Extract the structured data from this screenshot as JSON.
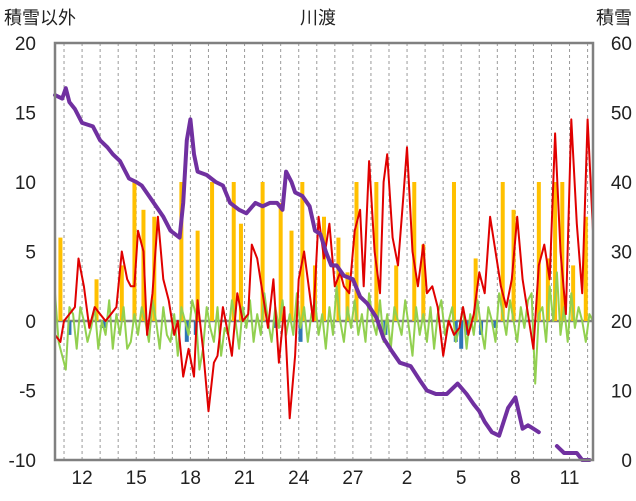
{
  "chart_data": {
    "type": "line",
    "title": "川渡",
    "left_axis_label": "積雪以外",
    "right_axis_label": "積雪",
    "left_ylim": [
      -10,
      20
    ],
    "left_ticks": [
      "20",
      "15",
      "10",
      "5",
      "0",
      "-5",
      "-10"
    ],
    "right_ylim": [
      0,
      60
    ],
    "right_ticks": [
      "60",
      "50",
      "40",
      "30",
      "20",
      "10",
      "0"
    ],
    "x_ticks": [
      "12",
      "15",
      "18",
      "21",
      "24",
      "27",
      "2",
      "5",
      "8",
      "11"
    ],
    "x_range_days": [
      10.5,
      40.3
    ],
    "grid": "vertical dashed daily gridlines",
    "colors": {
      "snow_depth": "#7030a0",
      "temperature": "#e00000",
      "temperature_alt": "#92d050",
      "precipitation": "#ffc000",
      "snowfall": "#2e75b6",
      "axis_zero": "#808080"
    },
    "snow_depth": {
      "axis": "right",
      "x": [
        10.5,
        10.9,
        11.1,
        11.3,
        11.6,
        12.0,
        12.6,
        13.0,
        13.4,
        13.7,
        14.1,
        14.6,
        15.0,
        15.3,
        15.7,
        16.1,
        16.5,
        16.9,
        17.4,
        17.6,
        17.8,
        18.0,
        18.2,
        18.4,
        18.9,
        19.4,
        19.8,
        20.2,
        20.7,
        21.1,
        21.6,
        22.0,
        22.4,
        22.8,
        23.1,
        23.3,
        23.6,
        23.8,
        24.2,
        24.6,
        24.9,
        25.2,
        25.5,
        25.8,
        26.1,
        26.5,
        27.0,
        27.4,
        27.8,
        28.3,
        28.7,
        29.2,
        29.6,
        30.2,
        30.7,
        31.1,
        31.6,
        32.2,
        32.8,
        33.3,
        33.7,
        34.0,
        34.3,
        34.7,
        35.1,
        35.6,
        36.0,
        36.4,
        36.7,
        37.0,
        37.3
      ],
      "y": [
        52.5,
        52.0,
        53.5,
        51.5,
        50.5,
        48.5,
        48.0,
        46.0,
        45.0,
        44.0,
        43.0,
        40.5,
        40.0,
        39.5,
        38.0,
        36.5,
        35.0,
        33.0,
        32.0,
        37.0,
        46.0,
        49.0,
        44.0,
        41.5,
        41.0,
        40.0,
        39.5,
        37.0,
        36.0,
        35.5,
        37.0,
        36.5,
        37.0,
        37.0,
        36.0,
        41.5,
        40.0,
        38.5,
        38.0,
        36.5,
        33.0,
        32.5,
        30.0,
        28.0,
        28.0,
        26.5,
        26.0,
        23.5,
        22.5,
        20.5,
        17.5,
        15.5,
        14.0,
        13.5,
        11.5,
        10.0,
        9.5,
        9.5,
        11.0,
        9.5,
        8.0,
        7.0,
        5.5,
        4.0,
        3.5,
        7.5,
        9.0,
        4.5,
        5.0,
        4.5,
        4.0
      ]
    },
    "snow_depth_tail": {
      "axis": "right",
      "x": [
        38.3,
        38.7,
        38.9,
        39.4,
        39.7,
        40.1
      ],
      "y": [
        2.0,
        1.0,
        1.0,
        1.0,
        0.0,
        0.0
      ]
    },
    "temperature": {
      "axis": "left",
      "x": [
        10.5,
        10.8,
        11.0,
        11.3,
        11.6,
        11.8,
        12.1,
        12.4,
        12.7,
        13.0,
        13.3,
        13.6,
        13.9,
        14.2,
        14.5,
        14.7,
        14.9,
        15.1,
        15.4,
        15.6,
        15.9,
        16.2,
        16.5,
        16.8,
        17.1,
        17.3,
        17.6,
        17.9,
        18.2,
        18.4,
        18.7,
        19.0,
        19.3,
        19.5,
        19.8,
        20.1,
        20.3,
        20.6,
        20.9,
        21.2,
        21.4,
        21.7,
        22.0,
        22.3,
        22.6,
        22.9,
        23.2,
        23.5,
        23.8,
        24.0,
        24.3,
        24.6,
        24.8,
        25.1,
        25.4,
        25.7,
        26.0,
        26.3,
        26.5,
        26.8,
        27.1,
        27.4,
        27.6,
        27.9,
        28.2,
        28.5,
        28.7,
        28.9,
        29.2,
        29.5,
        29.8,
        30.0,
        30.3,
        30.6,
        30.9,
        31.1,
        31.4,
        31.7,
        32.0,
        32.3,
        32.6,
        32.9,
        33.1,
        33.4,
        33.7,
        34.0,
        34.3,
        34.6,
        34.9,
        35.2,
        35.5,
        35.8,
        36.1,
        36.4,
        36.7,
        37.0,
        37.3,
        37.6,
        37.9,
        38.2,
        38.5,
        38.8,
        39.1,
        39.4,
        39.7,
        40.0,
        40.3
      ],
      "y": [
        -1.0,
        -1.5,
        0.0,
        0.5,
        1.0,
        4.5,
        2.5,
        -0.5,
        1.0,
        0.5,
        0.0,
        0.5,
        1.0,
        5.0,
        3.0,
        2.5,
        2.5,
        6.5,
        5.0,
        -1.0,
        2.0,
        7.5,
        3.0,
        1.5,
        -1.0,
        0.0,
        -4.0,
        -2.0,
        -4.0,
        1.5,
        -2.0,
        -6.5,
        -3.0,
        -2.5,
        1.0,
        -1.0,
        -2.5,
        2.0,
        0.0,
        0.5,
        5.5,
        4.5,
        2.0,
        -0.5,
        3.0,
        -3.0,
        1.0,
        -7.0,
        -2.5,
        3.0,
        5.0,
        2.0,
        0.0,
        7.5,
        4.5,
        7.0,
        2.5,
        3.5,
        2.5,
        2.0,
        6.5,
        8.0,
        2.5,
        11.5,
        5.0,
        2.0,
        10.0,
        12.0,
        6.0,
        4.0,
        9.0,
        12.5,
        5.0,
        2.5,
        5.5,
        2.0,
        2.5,
        1.0,
        -2.5,
        0.0,
        -1.0,
        -0.5,
        1.0,
        -1.0,
        0.5,
        3.5,
        2.0,
        7.5,
        5.0,
        2.5,
        1.0,
        3.0,
        7.5,
        3.0,
        0.5,
        -2.0,
        4.0,
        5.5,
        3.0,
        13.5,
        5.0,
        0.5,
        14.5,
        7.0,
        2.0,
        14.5,
        6.5
      ]
    },
    "temperature_alt": {
      "axis": "left",
      "x": [
        10.5,
        10.7,
        10.9,
        11.1,
        11.3,
        11.5,
        11.7,
        11.9,
        12.1,
        12.3,
        12.5,
        12.7,
        12.9,
        13.1,
        13.3,
        13.5,
        13.7,
        13.9,
        14.1,
        14.3,
        14.5,
        14.7,
        14.9,
        15.1,
        15.3,
        15.5,
        15.7,
        15.9,
        16.1,
        16.3,
        16.5,
        16.7,
        16.9,
        17.1,
        17.3,
        17.5,
        17.7,
        17.9,
        18.1,
        18.3,
        18.5,
        18.7,
        18.9,
        19.1,
        19.3,
        19.5,
        19.7,
        19.9,
        20.1,
        20.3,
        20.5,
        20.7,
        20.9,
        21.1,
        21.3,
        21.5,
        21.7,
        21.9,
        22.1,
        22.3,
        22.5,
        22.7,
        22.9,
        23.1,
        23.3,
        23.5,
        23.7,
        23.9,
        24.1,
        24.3,
        24.5,
        24.7,
        24.9,
        25.1,
        25.3,
        25.5,
        25.7,
        25.9,
        26.1,
        26.3,
        26.5,
        26.7,
        26.9,
        27.1,
        27.3,
        27.5,
        27.7,
        27.9,
        28.1,
        28.3,
        28.5,
        28.7,
        28.9,
        29.1,
        29.3,
        29.5,
        29.7,
        29.9,
        30.1,
        30.3,
        30.5,
        30.7,
        30.9,
        31.1,
        31.3,
        31.5,
        31.7,
        31.9,
        32.1,
        32.3,
        32.5,
        32.7,
        32.9,
        33.1,
        33.3,
        33.5,
        33.7,
        33.9,
        34.1,
        34.3,
        34.5,
        34.7,
        34.9,
        35.1,
        35.3,
        35.5,
        35.7,
        35.9,
        36.1,
        36.3,
        36.5,
        36.7,
        36.9,
        37.1,
        37.3,
        37.5,
        37.7,
        37.9,
        38.1,
        38.3,
        38.5,
        38.7,
        38.9,
        39.1,
        39.3,
        39.5,
        39.7,
        39.9,
        40.1,
        40.3
      ],
      "y": [
        2.0,
        -1.5,
        -2.5,
        -3.5,
        1.0,
        0.5,
        -2.0,
        1.0,
        0.0,
        -1.5,
        -0.5,
        1.0,
        -2.0,
        0.0,
        -1.0,
        1.5,
        -2.0,
        0.5,
        -1.0,
        1.0,
        -2.0,
        -1.5,
        0.5,
        -1.0,
        1.0,
        0.0,
        -1.5,
        1.5,
        0.0,
        -2.0,
        1.0,
        -1.0,
        -1.5,
        0.5,
        -2.5,
        1.0,
        0.0,
        -1.0,
        1.5,
        0.5,
        -3.5,
        -2.0,
        1.0,
        -0.5,
        -1.5,
        1.0,
        -2.5,
        -0.5,
        -1.0,
        1.5,
        0.0,
        -2.0,
        1.0,
        -0.5,
        1.5,
        -1.5,
        0.5,
        -1.0,
        2.0,
        0.0,
        -1.5,
        1.0,
        -0.5,
        1.5,
        -1.0,
        0.5,
        -1.0,
        2.0,
        -0.5,
        1.0,
        -1.5,
        0.5,
        1.5,
        -1.0,
        0.5,
        -2.0,
        1.0,
        -1.0,
        2.5,
        0.0,
        -1.5,
        1.0,
        -0.5,
        1.5,
        -1.0,
        0.5,
        -1.5,
        2.0,
        0.0,
        -1.0,
        1.5,
        -1.5,
        0.5,
        -2.0,
        1.0,
        0.0,
        -1.0,
        1.5,
        -0.5,
        -2.5,
        1.0,
        -1.0,
        0.5,
        -1.5,
        1.0,
        -2.0,
        0.5,
        1.5,
        -1.0,
        0.0,
        1.0,
        -1.5,
        -0.5,
        1.0,
        -2.0,
        0.5,
        -1.0,
        1.5,
        -0.5,
        -2.0,
        1.0,
        0.0,
        -1.5,
        2.0,
        0.5,
        -1.0,
        1.5,
        0.0,
        -1.5,
        1.0,
        -0.5,
        1.5,
        2.0,
        -4.5,
        0.5,
        1.0,
        -1.5,
        2.5,
        0.0,
        3.5,
        -1.0,
        1.0,
        -1.5,
        2.0,
        -0.5,
        1.0,
        0.0,
        -1.5,
        0.5,
        0.0
      ]
    },
    "precipitation": {
      "axis": "left",
      "x": [
        10.8,
        12.8,
        14.2,
        14.9,
        15.4,
        16.0,
        17.5,
        18.4,
        19.2,
        20.4,
        20.8,
        22.0,
        23.0,
        23.6,
        24.2,
        24.9,
        25.4,
        26.2,
        26.7,
        27.2,
        28.3,
        29.4,
        30.4,
        30.9,
        32.6,
        33.8,
        35.3,
        35.9,
        37.3,
        37.8,
        38.2,
        38.6,
        39.2,
        39.9
      ],
      "y": [
        6.0,
        3.0,
        4.0,
        10.0,
        8.0,
        7.5,
        10.0,
        6.5,
        10.0,
        10.0,
        7.0,
        10.0,
        8.5,
        6.5,
        10.0,
        4.0,
        7.5,
        6.0,
        3.5,
        10.0,
        10.0,
        4.0,
        10.0,
        5.5,
        10.0,
        4.5,
        10.0,
        8.0,
        10.0,
        4.5,
        10.0,
        10.0,
        4.0,
        7.5
      ]
    },
    "snowfall": {
      "axis": "left",
      "x": [
        11.3,
        13.2,
        17.8,
        18.3,
        22.7,
        24.1,
        28.8,
        32.7,
        33.0,
        33.3,
        34.1,
        34.9
      ],
      "y": [
        -1.0,
        -0.5,
        -1.5,
        -1.0,
        -0.5,
        -1.5,
        -1.0,
        -1.5,
        -2.0,
        -1.0,
        -1.0,
        -0.5
      ]
    }
  }
}
